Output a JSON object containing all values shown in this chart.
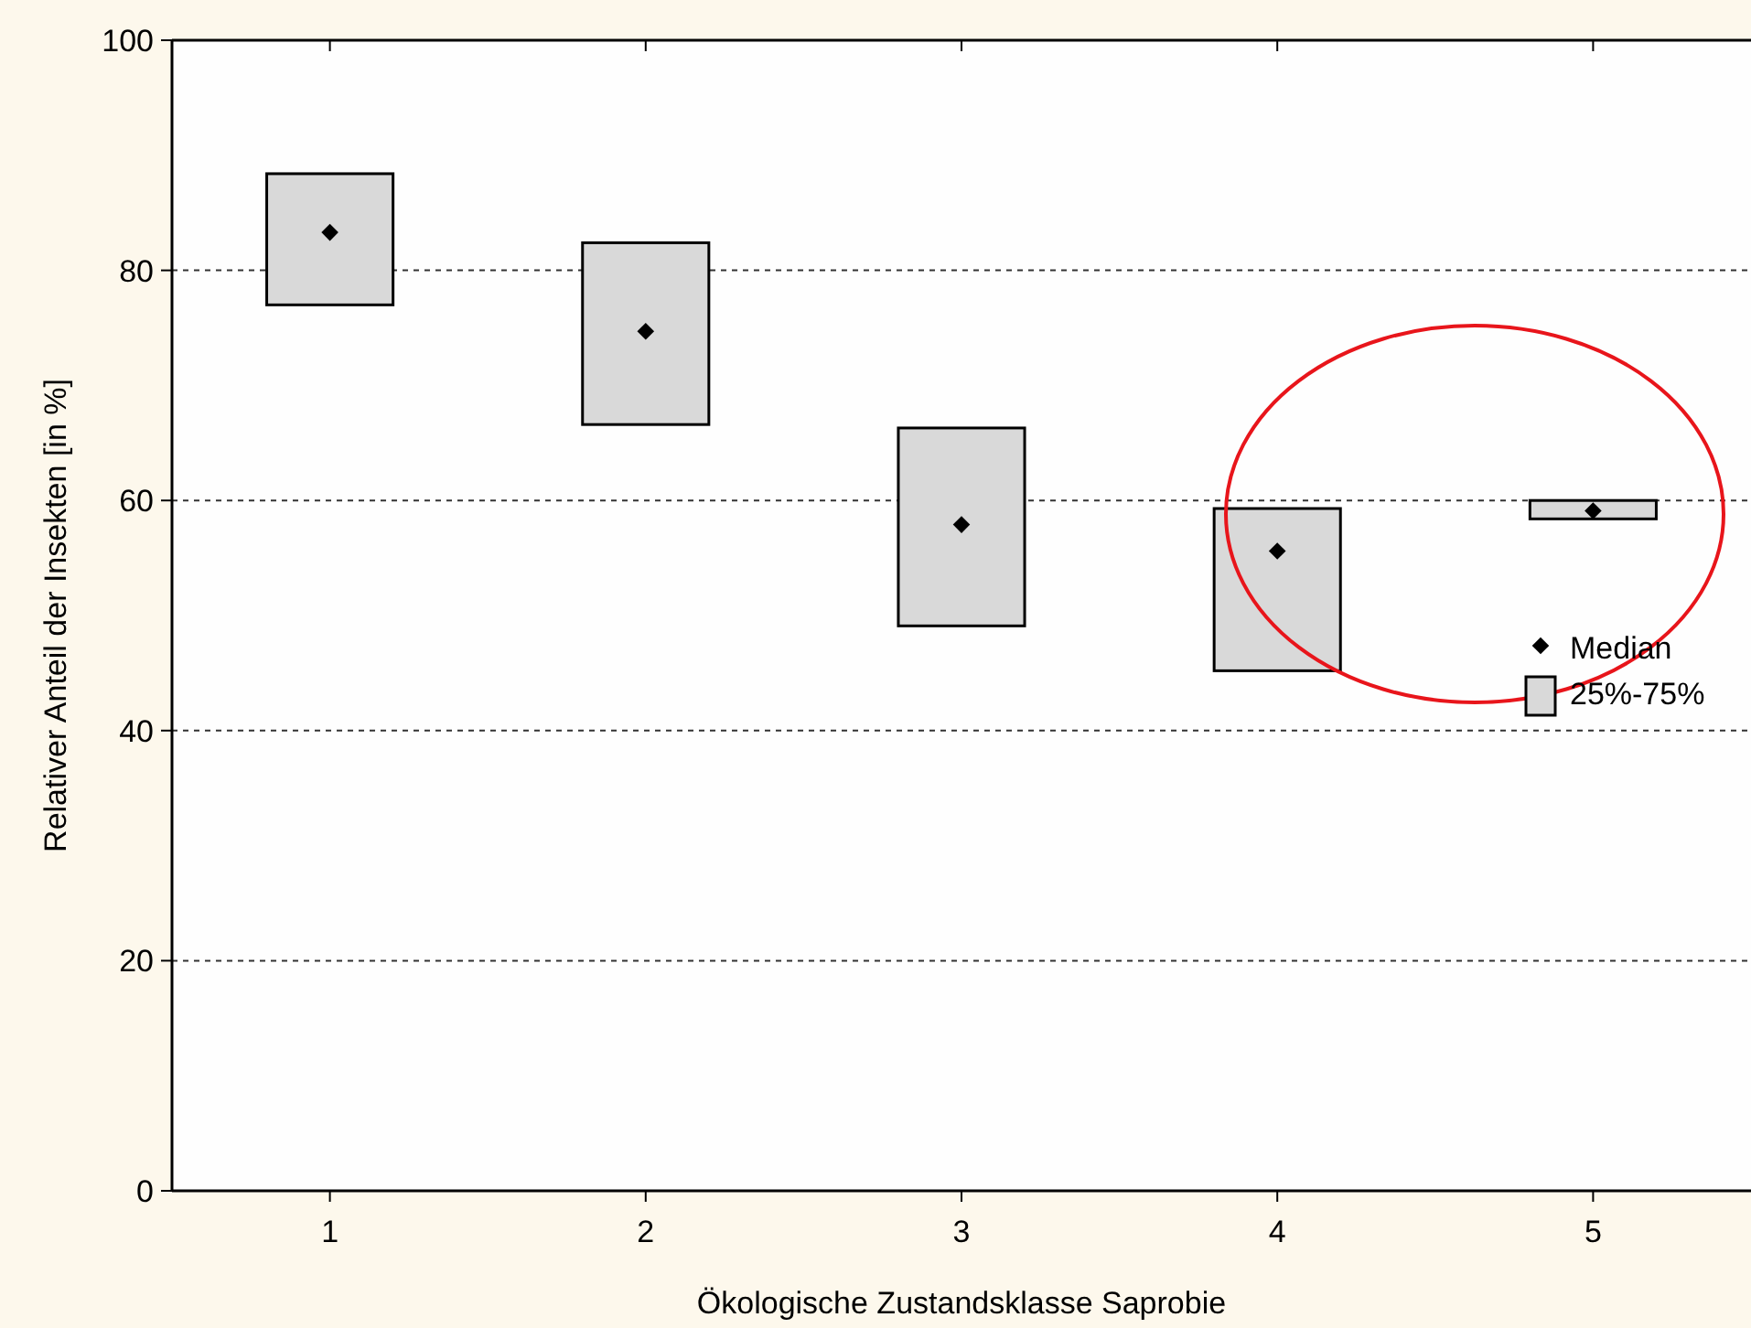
{
  "chart_data": {
    "type": "bar",
    "xlabel": "Ökologische Zustandsklasse Saprobie",
    "ylabel": "Relativer Anteil der Insekten [in %]",
    "categories": [
      "1",
      "2",
      "3",
      "4",
      "5"
    ],
    "series": [
      {
        "name": "25%-75%",
        "color": "#d9d9d9",
        "base": [
          77.0,
          66.6,
          49.1,
          45.2,
          58.4
        ],
        "values": [
          11.4,
          15.8,
          17.2,
          14.1,
          1.6
        ]
      },
      {
        "type": "scatter",
        "name": "Median",
        "color": "#000000",
        "marker": "diamond",
        "x": [
          "1",
          "2",
          "3",
          "4",
          "5"
        ],
        "values": [
          83.3,
          74.7,
          57.9,
          55.6,
          59.1
        ]
      }
    ],
    "ylim": [
      0,
      100
    ],
    "yticks": [
      0,
      20,
      40,
      60,
      80,
      100
    ],
    "grid": "y",
    "legend": "right"
  }
}
